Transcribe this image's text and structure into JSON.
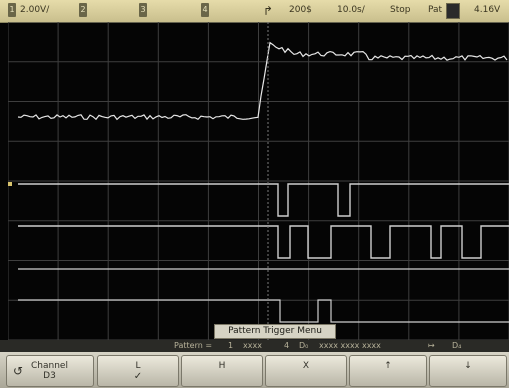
{
  "status": {
    "ch1_label": "1",
    "ch1_scale": "2.00V/",
    "ch2_label": "2",
    "ch3_label": "3",
    "ch4_label": "4",
    "trigger_icon": "rising-edge-icon",
    "delay": "200$",
    "timebase": "10.0s/",
    "run_state": "Stop",
    "trigger_mode": "Pat",
    "trigger_level": "4.16V"
  },
  "menu": {
    "title": "Pattern Trigger Menu"
  },
  "pattern": {
    "label": "Pattern =",
    "ch1": "1",
    "g1": "xxxx",
    "analog": "4",
    "digital_sym": "D₀",
    "g2": "xxxx xxxx xxxx",
    "end_sym": "↦",
    "end_val": "D₄"
  },
  "softkeys": {
    "channel_label": "Channel",
    "channel_value": "D3",
    "k1_label": "L",
    "k1_check": "✓",
    "k2_label": "H",
    "k3_label": "X",
    "k4_label": "↑",
    "k5_label": "↓"
  },
  "colors": {
    "analog_trace": "#e7e7e7",
    "digital_trace": "#cfcfcf",
    "grid": "#3e3e3e"
  }
}
